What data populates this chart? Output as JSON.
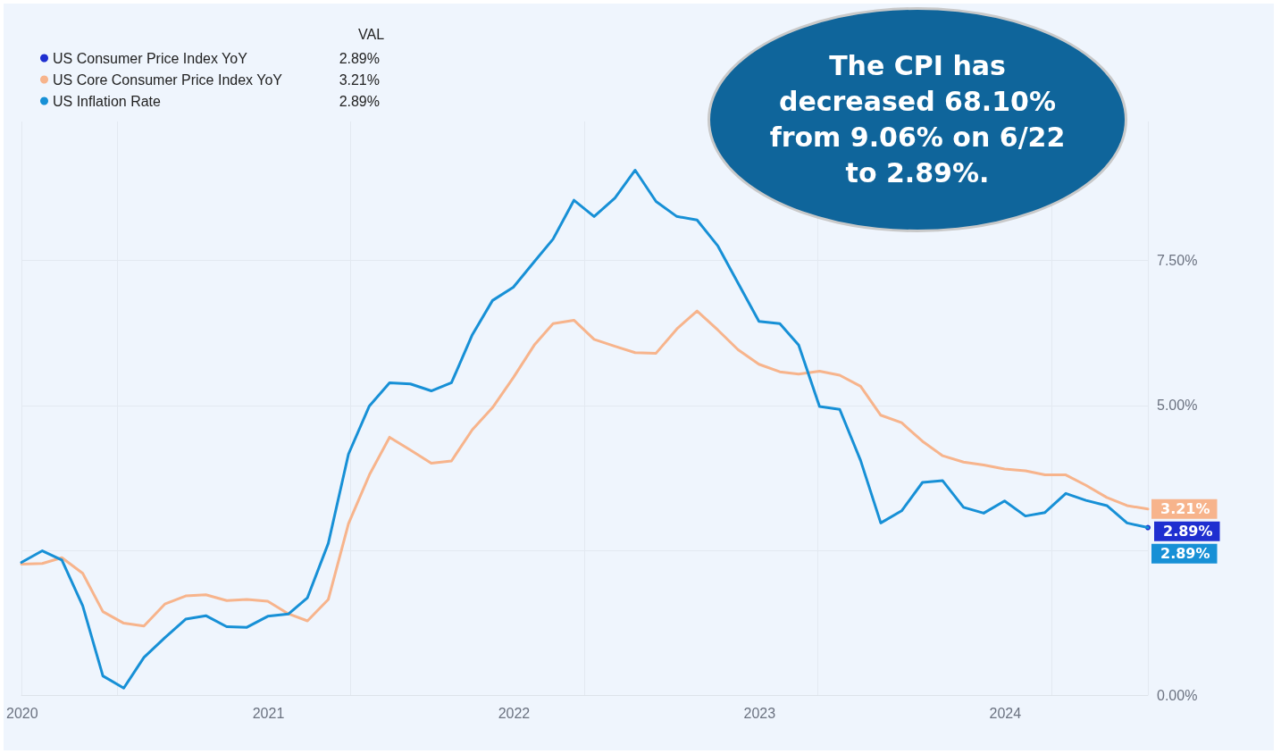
{
  "chart_data": {
    "type": "line",
    "x": [
      "2019-12-31",
      "2020-01-31",
      "2020-02-29",
      "2020-03-31",
      "2020-04-30",
      "2020-05-31",
      "2020-06-30",
      "2020-07-31",
      "2020-08-31",
      "2020-09-30",
      "2020-10-31",
      "2020-11-30",
      "2020-12-31",
      "2021-01-31",
      "2021-02-28",
      "2021-03-31",
      "2021-04-30",
      "2021-05-31",
      "2021-06-30",
      "2021-07-31",
      "2021-08-31",
      "2021-09-30",
      "2021-10-31",
      "2021-11-30",
      "2021-12-31",
      "2022-01-31",
      "2022-02-28",
      "2022-03-31",
      "2022-04-30",
      "2022-05-31",
      "2022-06-30",
      "2022-07-31",
      "2022-08-31",
      "2022-09-30",
      "2022-10-31",
      "2022-11-30",
      "2022-12-31",
      "2023-01-31",
      "2023-02-28",
      "2023-03-31",
      "2023-04-30",
      "2023-05-31",
      "2023-06-30",
      "2023-07-31",
      "2023-08-31",
      "2023-09-30",
      "2023-10-31",
      "2023-11-30",
      "2023-12-31",
      "2024-01-31",
      "2024-02-29",
      "2024-03-31",
      "2024-04-30",
      "2024-05-31",
      "2024-06-30",
      "2024-07-31"
    ],
    "series": [
      {
        "name": "US Consumer Price Index YoY",
        "color": "#1f2fd0",
        "values": [
          null,
          null,
          null,
          null,
          null,
          null,
          null,
          null,
          null,
          null,
          null,
          null,
          null,
          null,
          null,
          null,
          null,
          null,
          null,
          null,
          null,
          null,
          null,
          null,
          null,
          null,
          null,
          null,
          null,
          null,
          null,
          null,
          null,
          null,
          null,
          null,
          null,
          null,
          null,
          null,
          null,
          null,
          null,
          null,
          null,
          null,
          null,
          null,
          null,
          null,
          null,
          null,
          null,
          null,
          null,
          2.89
        ],
        "value_labels": [
          null,
          null,
          null,
          null,
          null,
          null,
          null,
          null,
          null,
          null,
          null,
          null,
          null,
          null,
          null,
          null,
          null,
          null,
          null,
          null,
          null,
          null,
          null,
          null,
          null,
          null,
          null,
          null,
          null,
          null,
          null,
          null,
          null,
          null,
          null,
          null,
          null,
          null,
          null,
          null,
          null,
          null,
          null,
          null,
          null,
          null,
          null,
          null,
          null,
          null,
          null,
          null,
          null,
          null,
          null,
          "2.89%"
        ]
      },
      {
        "name": "US Core Consumer Price Index YoY",
        "color": "#f7b48c",
        "values": [
          2.26,
          2.27,
          2.37,
          2.1,
          1.44,
          1.24,
          1.19,
          1.57,
          1.71,
          1.73,
          1.63,
          1.65,
          1.62,
          1.4,
          1.28,
          1.65,
          2.96,
          3.8,
          4.45,
          4.23,
          4.0,
          4.04,
          4.58,
          4.96,
          5.48,
          6.04,
          6.41,
          6.47,
          6.14,
          6.02,
          5.91,
          5.9,
          6.32,
          6.63,
          6.3,
          5.96,
          5.71,
          5.58,
          5.54,
          5.59,
          5.52,
          5.33,
          4.83,
          4.7,
          4.38,
          4.13,
          4.02,
          3.97,
          3.9,
          3.87,
          3.8,
          3.8,
          3.62,
          3.41,
          3.27,
          3.21
        ],
        "value_labels": [
          null,
          null,
          null,
          null,
          null,
          null,
          null,
          null,
          null,
          null,
          null,
          null,
          null,
          null,
          null,
          null,
          null,
          null,
          null,
          null,
          null,
          null,
          null,
          null,
          null,
          null,
          null,
          null,
          null,
          null,
          null,
          null,
          null,
          null,
          null,
          null,
          null,
          null,
          null,
          null,
          null,
          null,
          null,
          null,
          null,
          null,
          null,
          null,
          null,
          null,
          null,
          null,
          null,
          null,
          null,
          "3.21%"
        ]
      },
      {
        "name": "US Inflation Rate",
        "color": "#1790d6",
        "values": [
          2.29,
          2.49,
          2.33,
          1.54,
          0.33,
          0.12,
          0.65,
          0.99,
          1.31,
          1.37,
          1.18,
          1.17,
          1.36,
          1.4,
          1.68,
          2.62,
          4.16,
          4.99,
          5.39,
          5.37,
          5.25,
          5.39,
          6.22,
          6.81,
          7.04,
          7.48,
          7.87,
          8.54,
          8.26,
          8.58,
          9.06,
          8.52,
          8.26,
          8.2,
          7.75,
          7.11,
          6.45,
          6.41,
          6.04,
          4.98,
          4.93,
          4.05,
          2.97,
          3.18,
          3.67,
          3.7,
          3.24,
          3.14,
          3.35,
          3.09,
          3.15,
          3.48,
          3.36,
          3.27,
          2.97,
          2.89
        ],
        "value_labels": [
          null,
          null,
          null,
          null,
          null,
          null,
          null,
          null,
          null,
          null,
          null,
          null,
          null,
          null,
          null,
          null,
          null,
          null,
          null,
          null,
          null,
          null,
          null,
          null,
          null,
          null,
          null,
          null,
          null,
          null,
          null,
          null,
          null,
          null,
          null,
          null,
          null,
          null,
          null,
          null,
          null,
          null,
          null,
          null,
          null,
          null,
          null,
          null,
          null,
          null,
          null,
          null,
          null,
          null,
          null,
          "2.89%"
        ]
      }
    ],
    "legend_title": "VAL",
    "legend": "top left",
    "xlim": [
      "2019-12-31",
      "2024-07-31"
    ],
    "xticks": [
      "2020",
      "2021",
      "2022",
      "2023",
      "2024"
    ],
    "ylim": [
      0,
      9.9
    ],
    "yticks": [
      {
        "value": 0,
        "label": "0.00%"
      },
      {
        "value": 2.5,
        "label": null
      },
      {
        "value": 5,
        "label": "5.00%"
      },
      {
        "value": 7.5,
        "label": "7.50%"
      }
    ],
    "grid": true,
    "marker": "none",
    "line_style": "solid",
    "annotations": [
      "The CPI has decreased 68.10% from 9.06% on 6/22 to 2.89%."
    ]
  }
}
